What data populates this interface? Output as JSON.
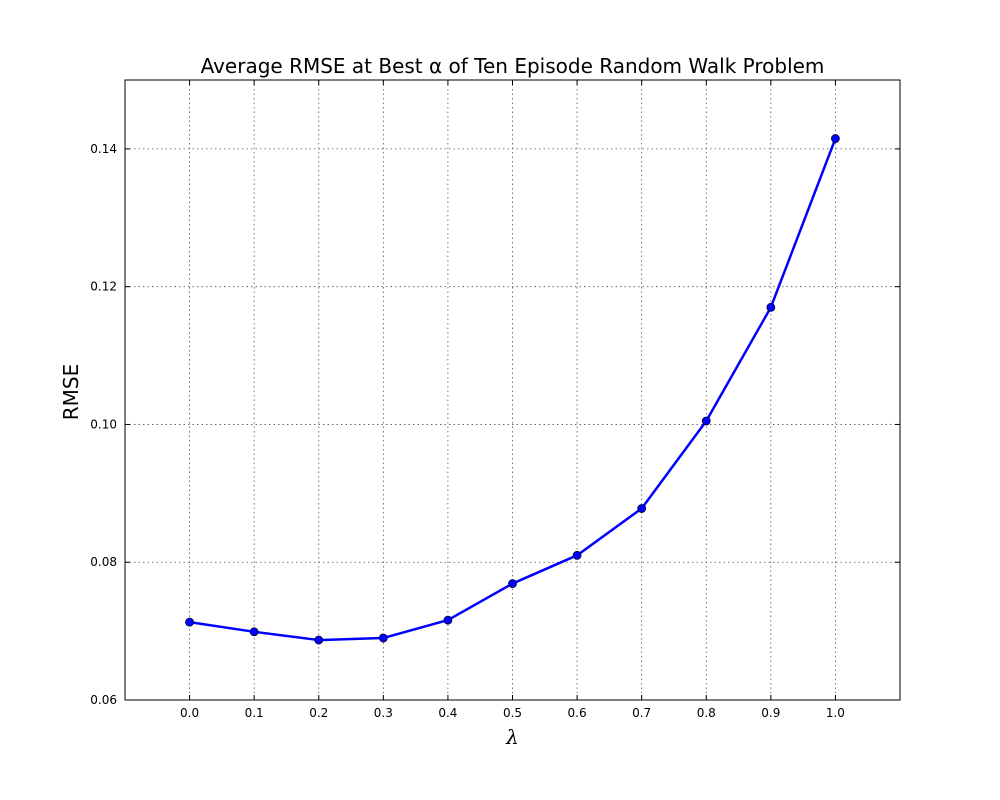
{
  "chart_data": {
    "type": "line",
    "title": "Average RMSE at Best α of Ten Episode Random Walk Problem",
    "xlabel": "λ",
    "ylabel": "RMSE",
    "xlim": [
      -0.1,
      1.1
    ],
    "ylim": [
      0.06,
      0.15
    ],
    "xticks": [
      0.0,
      0.1,
      0.2,
      0.3,
      0.4,
      0.5,
      0.6,
      0.7,
      0.8,
      0.9,
      1.0
    ],
    "xtick_labels": [
      "0.0",
      "0.1",
      "0.2",
      "0.3",
      "0.4",
      "0.5",
      "0.6",
      "0.7",
      "0.8",
      "0.9",
      "1.0"
    ],
    "yticks": [
      0.06,
      0.08,
      0.1,
      0.12,
      0.14
    ],
    "ytick_labels": [
      "0.06",
      "0.08",
      "0.10",
      "0.12",
      "0.14"
    ],
    "grid": true,
    "series": [
      {
        "color": "#0000ff",
        "marker": "circle",
        "x": [
          0.0,
          0.1,
          0.2,
          0.3,
          0.4,
          0.5,
          0.6,
          0.7,
          0.8,
          0.9,
          1.0
        ],
        "y": [
          0.0713,
          0.0699,
          0.0687,
          0.069,
          0.0716,
          0.0769,
          0.081,
          0.0878,
          0.1005,
          0.117,
          0.1415
        ]
      }
    ]
  }
}
